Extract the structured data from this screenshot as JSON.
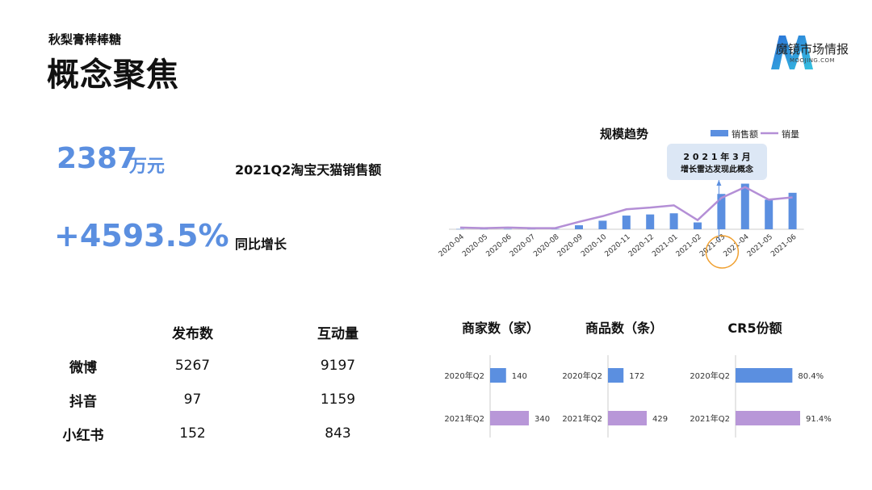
{
  "header": {
    "subtitle": "秋梨膏棒棒糖",
    "title": "概念聚焦"
  },
  "logo": {
    "text": "魔镜市场情报",
    "sub": "MOOJING.COM",
    "colors": [
      "#2b6fd8",
      "#35c2e0"
    ]
  },
  "kpis": {
    "sales_value": "2387",
    "sales_unit": "万元",
    "sales_label": "2021Q2淘宝天猫销售额",
    "growth_value": "+4593.5%",
    "growth_label": "同比增长"
  },
  "social_table": {
    "columns": [
      "",
      "发布数",
      "互动量"
    ],
    "rows": [
      {
        "platform": "微博",
        "posts": "5267",
        "interactions": "9197"
      },
      {
        "platform": "抖音",
        "posts": "97",
        "interactions": "1159"
      },
      {
        "platform": "小红书",
        "posts": "152",
        "interactions": "843"
      }
    ]
  },
  "colors": {
    "bar_blue": "#5b8fe0",
    "line_purple": "#b48fd6",
    "bar_purple": "#b897d8",
    "highlight_orange": "#f0a030",
    "callout_bg": "#dce7f5"
  },
  "chart_data": [
    {
      "type": "bar+line",
      "title": "规模趋势",
      "categories": [
        "2020-04",
        "2020-05",
        "2020-06",
        "2020-07",
        "2020-08",
        "2020-09",
        "2020-10",
        "2020-11",
        "2020-12",
        "2021-01",
        "2021-02",
        "2021-03",
        "2021-04",
        "2021-05",
        "2021-06"
      ],
      "series": [
        {
          "name": "销售额",
          "kind": "bar",
          "values": [
            0.5,
            0.5,
            0.5,
            0.5,
            0.5,
            7,
            15,
            24,
            26,
            28,
            12,
            62,
            80,
            52,
            64
          ]
        },
        {
          "name": "销量",
          "kind": "line",
          "values": [
            3,
            2,
            3,
            2,
            2,
            13,
            23,
            35,
            38,
            42,
            16,
            55,
            74,
            52,
            56
          ]
        }
      ],
      "legend": "top-right",
      "annotation": {
        "text_line1": "2 0 2 1 年 3 月",
        "text_line2": "增长雷达发现此概念",
        "category": "2021-03"
      }
    },
    {
      "type": "bar",
      "orientation": "horizontal",
      "title": "商家数（家）",
      "categories": [
        "2020年Q2",
        "2021年Q2"
      ],
      "values": [
        140,
        340
      ],
      "labels": [
        "140",
        "340"
      ]
    },
    {
      "type": "bar",
      "orientation": "horizontal",
      "title": "商品数（条）",
      "categories": [
        "2020年Q2",
        "2021年Q2"
      ],
      "values": [
        172,
        429
      ],
      "labels": [
        "172",
        "429"
      ]
    },
    {
      "type": "bar",
      "orientation": "horizontal",
      "title": "CR5份额",
      "categories": [
        "2020年Q2",
        "2021年Q2"
      ],
      "values": [
        80.4,
        91.4
      ],
      "labels": [
        "80.4%",
        "91.4%"
      ]
    }
  ]
}
